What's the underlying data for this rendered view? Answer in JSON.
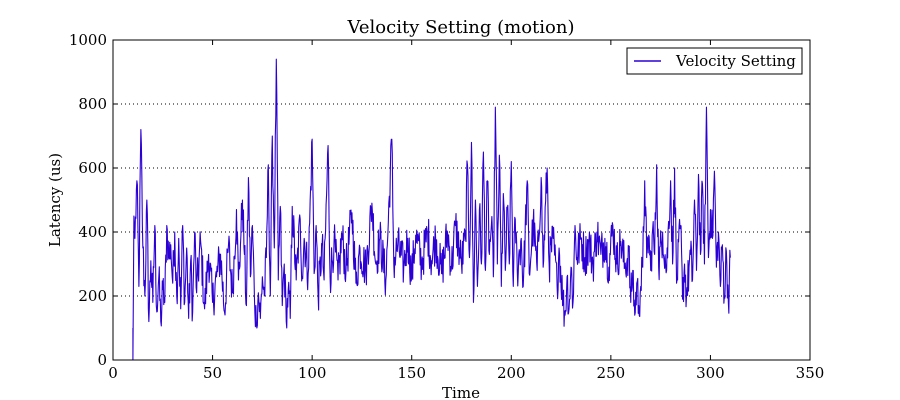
{
  "chart_data": {
    "type": "line",
    "title": "Velocity Setting (motion)",
    "xlabel": "Time",
    "ylabel": "Latency (us)",
    "xlim": [
      0,
      350
    ],
    "ylim": [
      0,
      1000
    ],
    "xticks": [
      0,
      50,
      100,
      150,
      200,
      250,
      300,
      350
    ],
    "yticks": [
      0,
      200,
      400,
      600,
      800,
      1000
    ],
    "grid": "y-dotted",
    "legend_position": "top-right",
    "series": [
      {
        "name": "Velocity Setting",
        "color": "#2b00d4",
        "x_start": 10,
        "x_end": 310,
        "keypoints": [
          [
            10,
            0
          ],
          [
            10.5,
            450
          ],
          [
            11,
            380
          ],
          [
            12,
            560
          ],
          [
            13,
            230
          ],
          [
            14,
            720
          ],
          [
            15,
            350
          ],
          [
            16,
            200
          ],
          [
            17,
            500
          ],
          [
            18,
            120
          ],
          [
            19,
            310
          ],
          [
            20,
            180
          ],
          [
            21,
            420
          ],
          [
            22,
            150
          ],
          [
            23,
            260
          ],
          [
            24,
            120
          ],
          [
            25,
            220
          ],
          [
            26,
            180
          ],
          [
            27,
            420
          ],
          [
            28,
            320
          ],
          [
            29,
            360
          ],
          [
            30,
            240
          ],
          [
            31,
            400
          ],
          [
            32,
            200
          ],
          [
            33,
            380
          ],
          [
            34,
            160
          ],
          [
            35,
            420
          ],
          [
            36,
            180
          ],
          [
            37,
            350
          ],
          [
            38,
            130
          ],
          [
            39,
            310
          ],
          [
            40,
            150
          ],
          [
            41,
            400
          ],
          [
            42,
            210
          ],
          [
            44,
            370
          ],
          [
            46,
            160
          ],
          [
            48,
            330
          ],
          [
            50,
            180
          ],
          [
            52,
            260
          ],
          [
            54,
            330
          ],
          [
            56,
            150
          ],
          [
            58,
            360
          ],
          [
            60,
            210
          ],
          [
            62,
            470
          ],
          [
            63,
            250
          ],
          [
            64,
            360
          ],
          [
            65,
            500
          ],
          [
            66,
            330
          ],
          [
            67,
            170
          ],
          [
            68,
            570
          ],
          [
            69,
            260
          ],
          [
            70,
            420
          ],
          [
            71,
            200
          ],
          [
            72,
            110
          ],
          [
            73,
            210
          ],
          [
            74,
            130
          ],
          [
            75,
            260
          ],
          [
            76,
            200
          ],
          [
            77,
            320
          ],
          [
            78,
            610
          ],
          [
            79,
            200
          ],
          [
            80,
            700
          ],
          [
            81,
            350
          ],
          [
            82,
            940
          ],
          [
            83,
            250
          ],
          [
            84,
            480
          ],
          [
            85,
            170
          ],
          [
            86,
            300
          ],
          [
            87,
            120
          ],
          [
            88,
            220
          ],
          [
            89,
            130
          ],
          [
            90,
            480
          ],
          [
            92,
            250
          ],
          [
            94,
            440
          ],
          [
            95,
            260
          ],
          [
            96,
            380
          ],
          [
            98,
            270
          ],
          [
            100,
            690
          ],
          [
            101,
            270
          ],
          [
            102,
            420
          ],
          [
            103,
            200
          ],
          [
            105,
            360
          ],
          [
            106,
            250
          ],
          [
            108,
            670
          ],
          [
            109,
            260
          ],
          [
            111,
            370
          ],
          [
            113,
            250
          ],
          [
            115,
            390
          ],
          [
            117,
            280
          ],
          [
            120,
            460
          ],
          [
            122,
            240
          ],
          [
            124,
            350
          ],
          [
            127,
            280
          ],
          [
            130,
            490
          ],
          [
            132,
            300
          ],
          [
            134,
            380
          ],
          [
            137,
            250
          ],
          [
            140,
            690
          ],
          [
            141,
            300
          ],
          [
            143,
            360
          ],
          [
            146,
            290
          ],
          [
            148,
            380
          ],
          [
            150,
            260
          ],
          [
            152,
            390
          ],
          [
            155,
            300
          ],
          [
            158,
            400
          ],
          [
            160,
            310
          ],
          [
            162,
            380
          ],
          [
            165,
            270
          ],
          [
            168,
            400
          ],
          [
            170,
            290
          ],
          [
            172,
            420
          ],
          [
            175,
            300
          ],
          [
            177,
            380
          ],
          [
            178,
            610
          ],
          [
            179,
            320
          ],
          [
            180,
            680
          ],
          [
            181,
            180
          ],
          [
            182,
            500
          ],
          [
            183,
            230
          ],
          [
            184,
            470
          ],
          [
            185,
            300
          ],
          [
            186,
            650
          ],
          [
            187,
            280
          ],
          [
            188,
            560
          ],
          [
            189,
            330
          ],
          [
            190,
            420
          ],
          [
            191,
            260
          ],
          [
            192,
            790
          ],
          [
            193,
            300
          ],
          [
            194,
            640
          ],
          [
            195,
            230
          ],
          [
            196,
            520
          ],
          [
            197,
            280
          ],
          [
            198,
            470
          ],
          [
            199,
            300
          ],
          [
            200,
            620
          ],
          [
            201,
            230
          ],
          [
            202,
            440
          ],
          [
            203,
            280
          ],
          [
            205,
            380
          ],
          [
            206,
            230
          ],
          [
            208,
            560
          ],
          [
            209,
            270
          ],
          [
            211,
            430
          ],
          [
            213,
            280
          ],
          [
            215,
            570
          ],
          [
            216,
            290
          ],
          [
            218,
            600
          ],
          [
            219,
            300
          ],
          [
            221,
            380
          ],
          [
            223,
            230
          ],
          [
            224,
            350
          ],
          [
            226,
            180
          ],
          [
            227,
            140
          ],
          [
            228,
            260
          ],
          [
            229,
            160
          ],
          [
            230,
            290
          ],
          [
            231,
            180
          ],
          [
            232,
            420
          ],
          [
            233,
            320
          ],
          [
            235,
            380
          ],
          [
            237,
            320
          ],
          [
            239,
            370
          ],
          [
            241,
            300
          ],
          [
            243,
            400
          ],
          [
            245,
            330
          ],
          [
            247,
            380
          ],
          [
            249,
            290
          ],
          [
            251,
            420
          ],
          [
            253,
            300
          ],
          [
            255,
            370
          ],
          [
            257,
            290
          ],
          [
            259,
            340
          ],
          [
            260,
            180
          ],
          [
            261,
            280
          ],
          [
            262,
            140
          ],
          [
            263,
            240
          ],
          [
            264,
            170
          ],
          [
            265,
            230
          ],
          [
            266,
            290
          ],
          [
            267,
            560
          ],
          [
            268,
            320
          ],
          [
            269,
            390
          ],
          [
            270,
            280
          ],
          [
            271,
            410
          ],
          [
            272,
            330
          ],
          [
            273,
            610
          ],
          [
            274,
            290
          ],
          [
            276,
            400
          ],
          [
            278,
            280
          ],
          [
            280,
            560
          ],
          [
            281,
            300
          ],
          [
            282,
            600
          ],
          [
            283,
            240
          ],
          [
            285,
            420
          ],
          [
            286,
            190
          ],
          [
            287,
            300
          ],
          [
            288,
            200
          ],
          [
            290,
            330
          ],
          [
            291,
            250
          ],
          [
            292,
            500
          ],
          [
            293,
            280
          ],
          [
            294,
            580
          ],
          [
            295,
            330
          ],
          [
            296,
            550
          ],
          [
            297,
            300
          ],
          [
            298,
            790
          ],
          [
            299,
            320
          ],
          [
            300,
            470
          ],
          [
            301,
            380
          ],
          [
            302,
            590
          ],
          [
            303,
            290
          ],
          [
            304,
            400
          ],
          [
            305,
            230
          ],
          [
            306,
            360
          ],
          [
            307,
            200
          ],
          [
            308,
            340
          ],
          [
            309,
            180
          ],
          [
            310,
            320
          ]
        ]
      }
    ]
  }
}
